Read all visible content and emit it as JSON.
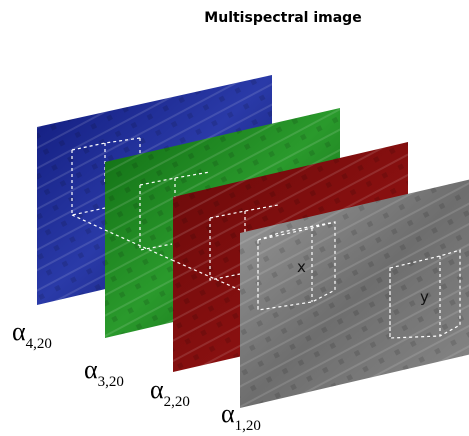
{
  "title": "Multispectral image",
  "layers": [
    {
      "symbol": "α",
      "subscript": "4,20"
    },
    {
      "symbol": "α",
      "subscript": "3,20"
    },
    {
      "symbol": "α",
      "subscript": "2,20"
    },
    {
      "symbol": "α",
      "subscript": "1,20"
    }
  ],
  "cube_labels": [
    "x",
    "y"
  ]
}
